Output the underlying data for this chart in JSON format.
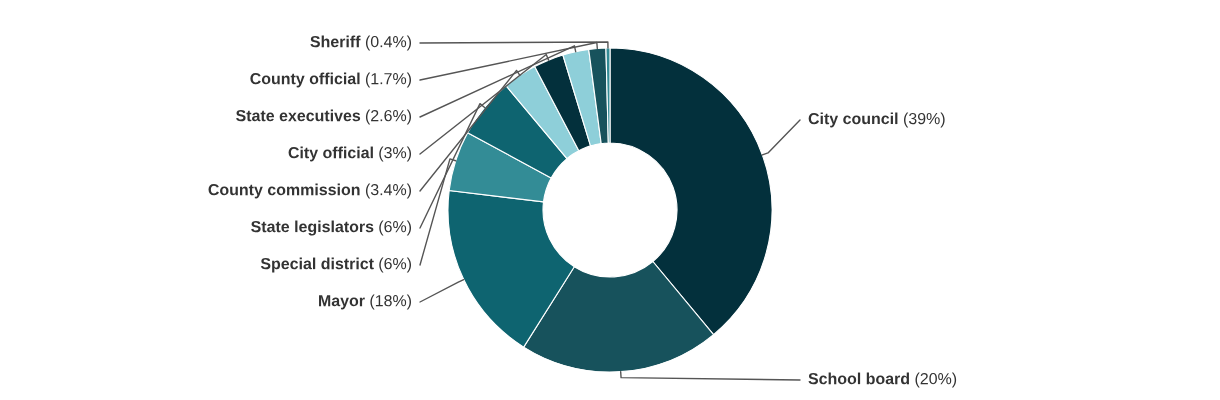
{
  "chart_data": {
    "type": "donut",
    "categories": [
      "City council",
      "School board",
      "Mayor",
      "Special district",
      "State legislators",
      "County commission",
      "City official",
      "State executives",
      "County official",
      "Sheriff"
    ],
    "values": [
      39,
      20,
      18,
      6,
      6,
      3.4,
      3,
      2.6,
      1.7,
      0.4
    ],
    "value_labels": [
      "(39%)",
      "(20%)",
      "(18%)",
      "(6%)",
      "(6%)",
      "(3.4%)",
      "(3%)",
      "(2.6%)",
      "(1.7%)",
      "(0.4%)"
    ],
    "colors": [
      "#03303c",
      "#17525c",
      "#0e6470",
      "#338c96",
      "#0e6470",
      "#8ecfd9",
      "#03303c",
      "#8ecfd9",
      "#17525c",
      "#338c96"
    ],
    "legend": false
  }
}
